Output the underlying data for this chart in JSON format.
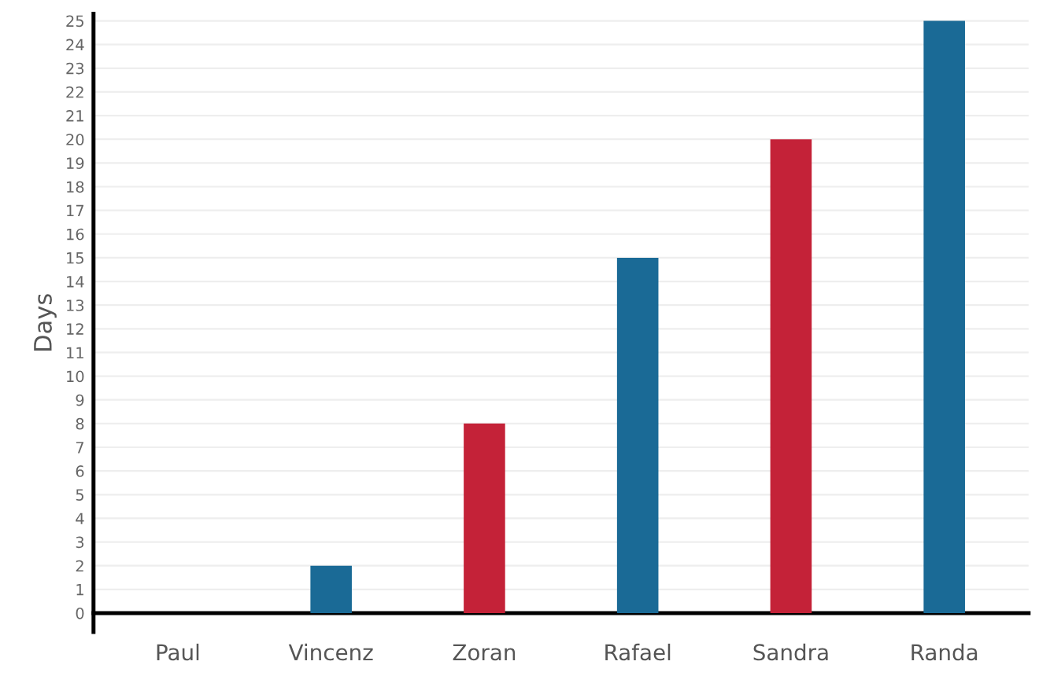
{
  "chart_data": {
    "type": "bar",
    "ylabel": "Days",
    "categories": [
      "Paul",
      "Vincenz",
      "Zoran",
      "Rafael",
      "Sandra",
      "Randa"
    ],
    "values": [
      0,
      2,
      8,
      15,
      20,
      25
    ],
    "colors": [
      "#1a6a96",
      "#1a6a96",
      "#c42238",
      "#1a6a96",
      "#c42238",
      "#1a6a96"
    ],
    "ylim": [
      -0.8,
      25.3
    ],
    "yticks": [
      0,
      1,
      2,
      3,
      4,
      5,
      6,
      7,
      8,
      9,
      10,
      11,
      12,
      13,
      14,
      15,
      16,
      17,
      18,
      19,
      20,
      21,
      22,
      23,
      24,
      25
    ],
    "grid": "y"
  }
}
